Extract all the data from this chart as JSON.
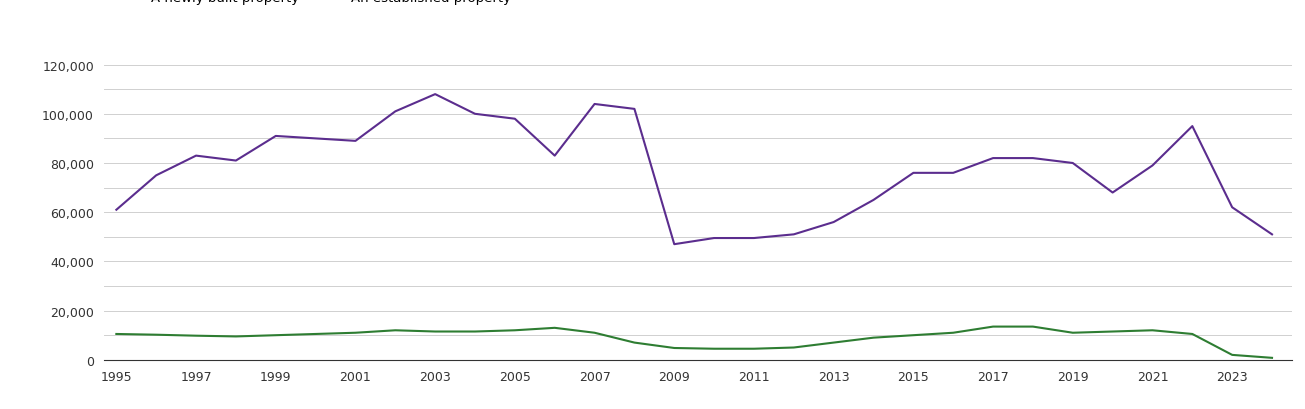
{
  "years": [
    1995,
    1996,
    1997,
    1998,
    1999,
    2000,
    2001,
    2002,
    2003,
    2004,
    2005,
    2006,
    2007,
    2008,
    2009,
    2010,
    2011,
    2012,
    2013,
    2014,
    2015,
    2016,
    2017,
    2018,
    2019,
    2020,
    2021,
    2022,
    2023,
    2024
  ],
  "new_homes": [
    10500,
    10200,
    9800,
    9500,
    10000,
    10500,
    11000,
    12000,
    11500,
    11500,
    12000,
    13000,
    11000,
    7000,
    4800,
    4500,
    4500,
    5000,
    7000,
    9000,
    10000,
    11000,
    13500,
    13500,
    11000,
    11500,
    12000,
    10500,
    2000,
    800
  ],
  "established_homes": [
    61000,
    75000,
    83000,
    81000,
    91000,
    90000,
    89000,
    101000,
    108000,
    100000,
    98000,
    83000,
    104000,
    102000,
    47000,
    49500,
    49500,
    51000,
    56000,
    65000,
    76000,
    76000,
    82000,
    82000,
    80000,
    68000,
    79000,
    95000,
    62000,
    51000
  ],
  "new_color": "#2e7d32",
  "established_color": "#5b2d8e",
  "background_color": "#ffffff",
  "grid_color": "#d0d0d0",
  "ylim": [
    0,
    125000
  ],
  "yticks_major": [
    0,
    20000,
    40000,
    60000,
    80000,
    100000,
    120000
  ],
  "yticks_minor": [
    10000,
    30000,
    50000,
    70000,
    90000,
    110000
  ],
  "linewidth": 1.5,
  "tick_fontsize": 9
}
